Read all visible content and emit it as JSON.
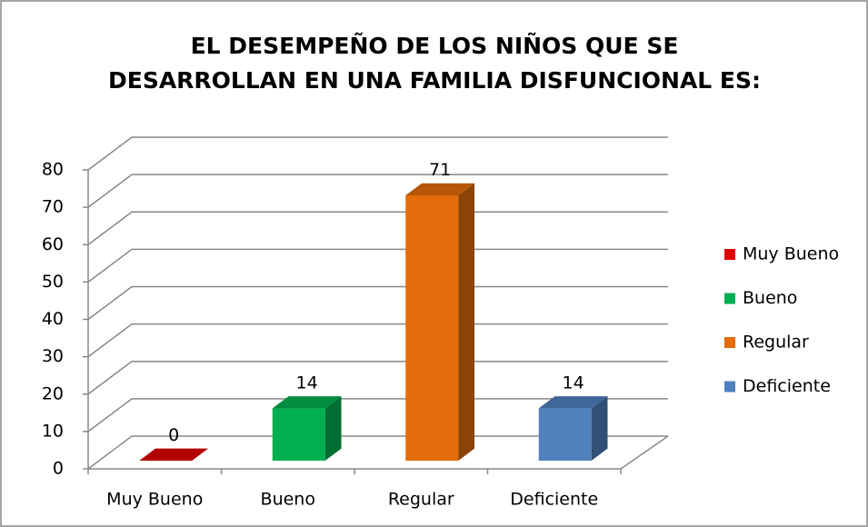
{
  "chart_data": {
    "type": "bar3d",
    "title": "EL DESEMPEÑO DE LOS NIÑOS QUE SE DESARROLLAN EN UNA FAMILIA DISFUNCIONAL ES:",
    "categories": [
      "Muy Bueno",
      "Bueno",
      "Regular",
      "Deficiente"
    ],
    "values": [
      0,
      14,
      71,
      14
    ],
    "colors": [
      "#e00000",
      "#00b050",
      "#e46c0a",
      "#4f81bd"
    ],
    "ylim": [
      0,
      80
    ],
    "yticks": [
      0,
      10,
      20,
      30,
      40,
      50,
      60,
      70,
      80
    ],
    "grid": true,
    "legend": "right"
  }
}
